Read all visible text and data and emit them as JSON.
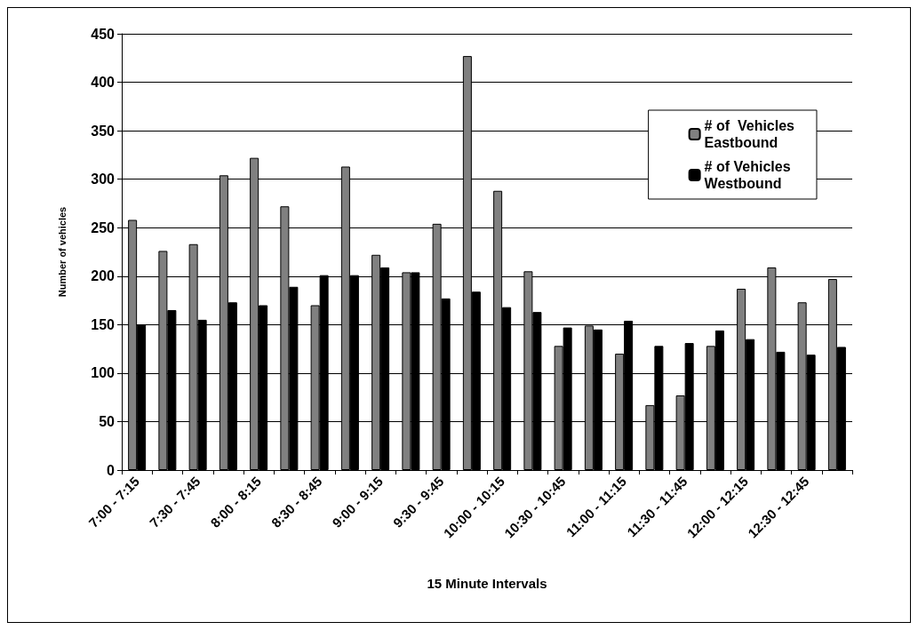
{
  "chart_data": {
    "type": "bar",
    "xlabel": "15 Minute Intervals",
    "ylabel": "Number of vehicles",
    "categories": [
      "7:00 - 7:15",
      null,
      "7:30 - 7:45",
      null,
      "8:00 - 8:15",
      null,
      "8:30 - 8:45",
      null,
      "9:00 - 9:15",
      null,
      "9:30 - 9:45",
      null,
      "10:00 - 10:15",
      null,
      "10:30 - 10:45",
      null,
      "11:00 - 11:15",
      null,
      "11:30 - 11:45",
      null,
      "12:00 - 12:15",
      null,
      "12:30 - 12:45",
      null
    ],
    "series": [
      {
        "name": "# of  Vehicles\nEastbound",
        "color": "#808080",
        "values": [
          258,
          226,
          233,
          304,
          322,
          272,
          170,
          313,
          222,
          204,
          254,
          427,
          288,
          205,
          128,
          149,
          120,
          67,
          77,
          128,
          187,
          209,
          173,
          197
        ]
      },
      {
        "name": "# of Vehicles\nWestbound",
        "color": "#000000",
        "values": [
          150,
          165,
          155,
          173,
          170,
          189,
          201,
          201,
          209,
          204,
          177,
          184,
          168,
          163,
          147,
          145,
          154,
          128,
          131,
          144,
          135,
          122,
          119,
          127
        ]
      }
    ],
    "ylim": [
      0,
      450
    ],
    "yticks": [
      0,
      50,
      100,
      150,
      200,
      250,
      300,
      350,
      400,
      450
    ],
    "grid": "y",
    "legend": "top right"
  }
}
